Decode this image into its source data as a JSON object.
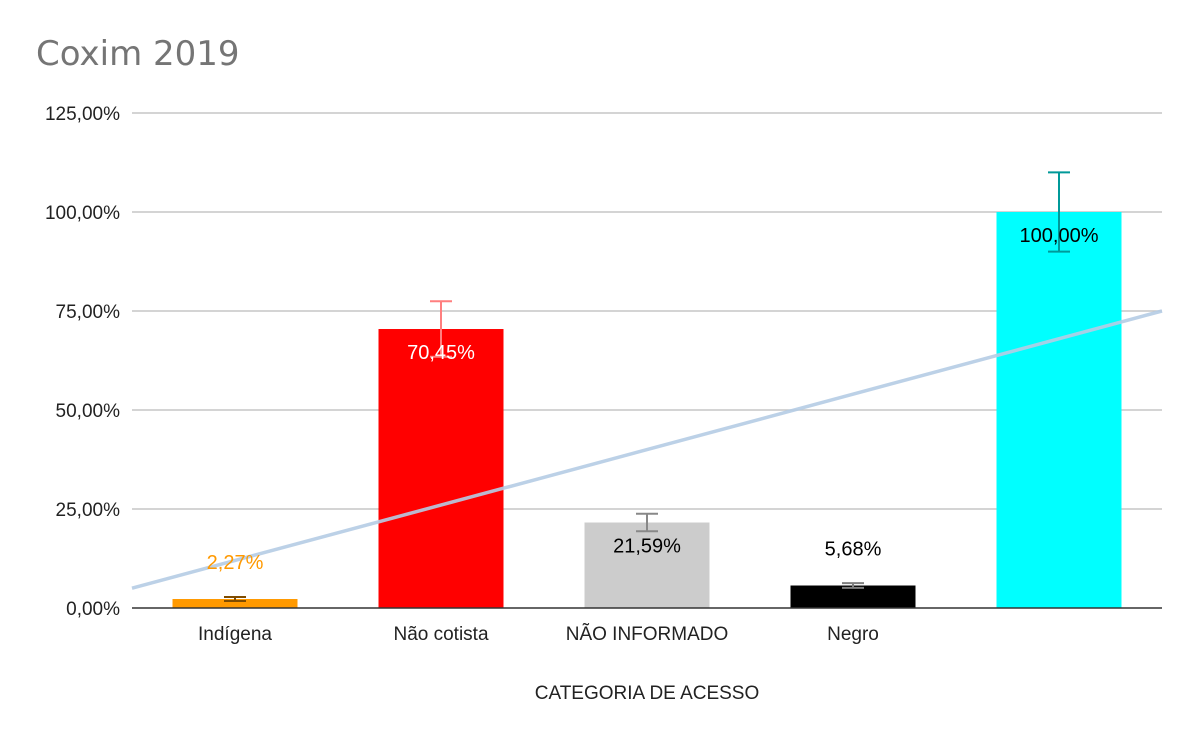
{
  "chart_data": {
    "type": "bar",
    "title": "Coxim 2019",
    "xlabel": "CATEGORIA DE ACESSO",
    "ylabel": "",
    "ylim": [
      0,
      125
    ],
    "yticks": [
      0,
      25,
      50,
      75,
      100,
      125
    ],
    "ytick_labels": [
      "0,00%",
      "25,00%",
      "50,00%",
      "75,00%",
      "100,00%",
      "125,00%"
    ],
    "categories": [
      "Indígena",
      "Não cotista",
      "NÃO INFORMADO",
      "Negro",
      ""
    ],
    "values": [
      2.27,
      70.45,
      21.59,
      5.68,
      100.0
    ],
    "value_labels": [
      "2,27%",
      "70,45%",
      "21,59%",
      "5,68%",
      "100,00%"
    ],
    "bar_colors": [
      "#ff9900",
      "#ff0000",
      "#cccccc",
      "#000000",
      "#00ffff"
    ],
    "error_bars": [
      0.5,
      7.0,
      2.2,
      0.6,
      10.0
    ],
    "error_colors": [
      "#7f4c00",
      "#ff7f7f",
      "#888888",
      "#7f7f7f",
      "#009999"
    ],
    "label_colors": [
      "#ff9900",
      "#ffffff",
      "#000000",
      "#000000",
      "#000000"
    ],
    "trendline": {
      "type": "linear",
      "color": "#b5cce4",
      "start": 5,
      "end": 75
    },
    "grid": true,
    "legend": "none"
  }
}
